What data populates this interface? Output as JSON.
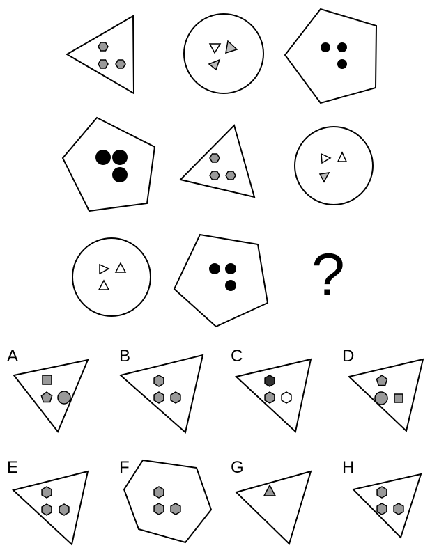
{
  "question_mark": "?",
  "options": [
    {
      "label": "A"
    },
    {
      "label": "B"
    },
    {
      "label": "C"
    },
    {
      "label": "D"
    },
    {
      "label": "E"
    },
    {
      "label": "F"
    },
    {
      "label": "G"
    },
    {
      "label": "H"
    }
  ],
  "colors": {
    "outline": "#000000",
    "grey_fill": "#999999",
    "dark_fill": "#333333",
    "light_fill": "#ffffff",
    "black_fill": "#000000"
  }
}
